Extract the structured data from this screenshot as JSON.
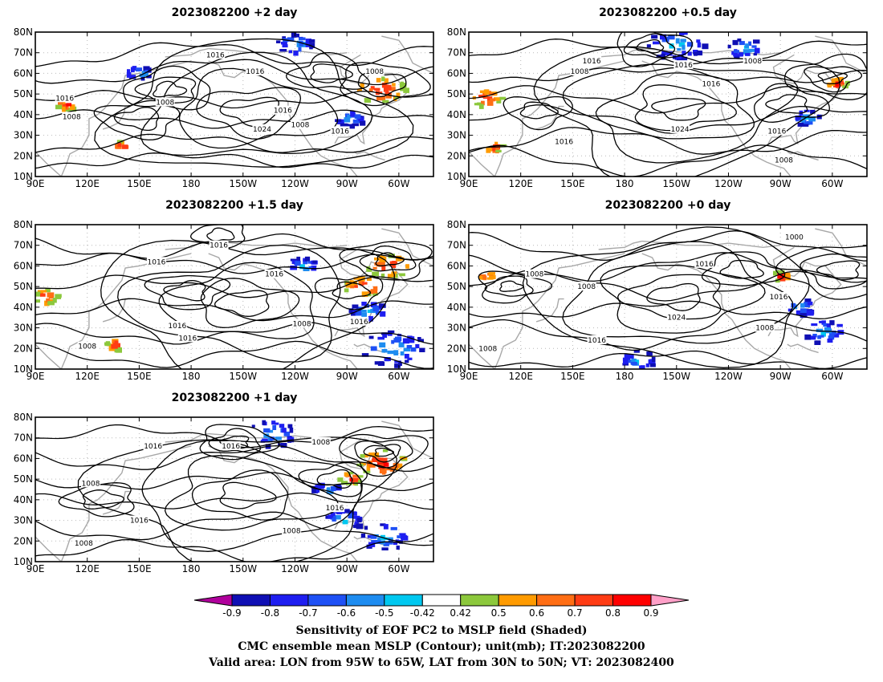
{
  "panels": [
    {
      "key": "d2",
      "title": "2023082200 +2 day",
      "labels": [
        {
          "text": "1016",
          "lon": -166,
          "lat": 69
        },
        {
          "text": "1016",
          "lon": -143,
          "lat": 61
        },
        {
          "text": "1016",
          "lon": -127,
          "lat": 42
        },
        {
          "text": "1008",
          "lon": -74,
          "lat": 61
        },
        {
          "text": "1016",
          "lon": 107,
          "lat": 48
        },
        {
          "text": "1008",
          "lon": 111,
          "lat": 39
        },
        {
          "text": "1008",
          "lon": 165,
          "lat": 46
        },
        {
          "text": "1024",
          "lon": -139,
          "lat": 33
        },
        {
          "text": "1008",
          "lon": -117,
          "lat": 35
        },
        {
          "text": "1016",
          "lon": -94,
          "lat": 32
        }
      ]
    },
    {
      "key": "d05",
      "title": "2023082200 +0.5 day",
      "labels": [
        {
          "text": "1016",
          "lon": 161,
          "lat": 66
        },
        {
          "text": "1016",
          "lon": -146,
          "lat": 64
        },
        {
          "text": "1008",
          "lon": 154,
          "lat": 61
        },
        {
          "text": "1008",
          "lon": -106,
          "lat": 66
        },
        {
          "text": "1016",
          "lon": -130,
          "lat": 55
        },
        {
          "text": "1024",
          "lon": -148,
          "lat": 33
        },
        {
          "text": "1016",
          "lon": 145,
          "lat": 27
        },
        {
          "text": "1016",
          "lon": -92,
          "lat": 32
        },
        {
          "text": "1008",
          "lon": -88,
          "lat": 18
        }
      ]
    },
    {
      "key": "d15",
      "title": "2023082200 +1.5 day",
      "labels": [
        {
          "text": "1016",
          "lon": -164,
          "lat": 70
        },
        {
          "text": "1016",
          "lon": 160,
          "lat": 62
        },
        {
          "text": "1016",
          "lon": -132,
          "lat": 56
        },
        {
          "text": "1016",
          "lon": 172,
          "lat": 31
        },
        {
          "text": "1016",
          "lon": -182,
          "lat": 25
        },
        {
          "text": "1008",
          "lon": -116,
          "lat": 32
        },
        {
          "text": "1016",
          "lon": -83,
          "lat": 33
        },
        {
          "text": "1008",
          "lon": 120,
          "lat": 21
        }
      ]
    },
    {
      "key": "d0",
      "title": "2023082200 +0 day",
      "labels": [
        {
          "text": "1000",
          "lon": -82,
          "lat": 74
        },
        {
          "text": "1016",
          "lon": -134,
          "lat": 61
        },
        {
          "text": "1008",
          "lon": 128,
          "lat": 56
        },
        {
          "text": "1008",
          "lon": 158,
          "lat": 50
        },
        {
          "text": "1016",
          "lon": -91,
          "lat": 45
        },
        {
          "text": "1024",
          "lon": -150,
          "lat": 35
        },
        {
          "text": "1008",
          "lon": -99,
          "lat": 30
        },
        {
          "text": "1016",
          "lon": 164,
          "lat": 24
        },
        {
          "text": "1008",
          "lon": 101,
          "lat": 20
        }
      ]
    },
    {
      "key": "d1",
      "title": "2023082200 +1 day",
      "labels": [
        {
          "text": "1016",
          "lon": 158,
          "lat": 66
        },
        {
          "text": "1016",
          "lon": -157,
          "lat": 66
        },
        {
          "text": "1008",
          "lon": -105,
          "lat": 68
        },
        {
          "text": "1008",
          "lon": 122,
          "lat": 48
        },
        {
          "text": "1016",
          "lon": -97,
          "lat": 36
        },
        {
          "text": "1016",
          "lon": 150,
          "lat": 30
        },
        {
          "text": "1008",
          "lon": -122,
          "lat": 25
        },
        {
          "text": "1008",
          "lon": 118,
          "lat": 19
        }
      ]
    }
  ],
  "axes": {
    "lon_ticks": [
      {
        "lon": 90,
        "label": "90E"
      },
      {
        "lon": 120,
        "label": "120E"
      },
      {
        "lon": 150,
        "label": "150E"
      },
      {
        "lon": 180,
        "label": "180"
      },
      {
        "lon": 210,
        "label": "150W"
      },
      {
        "lon": 240,
        "label": "120W"
      },
      {
        "lon": 270,
        "label": "90W"
      },
      {
        "lon": 300,
        "label": "60W"
      }
    ],
    "lat_ticks": [
      {
        "lat": 10,
        "label": "10N"
      },
      {
        "lat": 20,
        "label": "20N"
      },
      {
        "lat": 30,
        "label": "30N"
      },
      {
        "lat": 40,
        "label": "40N"
      },
      {
        "lat": 50,
        "label": "50N"
      },
      {
        "lat": 60,
        "label": "60N"
      },
      {
        "lat": 70,
        "label": "70N"
      },
      {
        "lat": 80,
        "label": "80N"
      }
    ],
    "lon_range": [
      90,
      320
    ],
    "lat_range": [
      10,
      80
    ]
  },
  "colorbar": {
    "colors": [
      "#b0009c",
      "#0f0fb4",
      "#1e1ef0",
      "#1e50f5",
      "#1e8cf0",
      "#00c8f0",
      "#ffffff",
      "#8cc83c",
      "#ff9b00",
      "#ff6e14",
      "#ff3c14",
      "#ff0000",
      "#ffa0c8"
    ],
    "labels": [
      "-0.9",
      "-0.8",
      "-0.7",
      "-0.6",
      "-0.5",
      "-0.42",
      "0.42",
      "0.5",
      "0.6",
      "0.7",
      "0.8",
      "0.9"
    ]
  },
  "caption": {
    "line1": "Sensitivity of EOF PC2 to MSLP field (Shaded)",
    "line2": "CMC ensemble mean MSLP (Contour); unit(mb); IT:2023082200",
    "line3": "Valid area: LON from 95W to 65W, LAT from 30N to 50N; VT: 2023082400"
  }
}
